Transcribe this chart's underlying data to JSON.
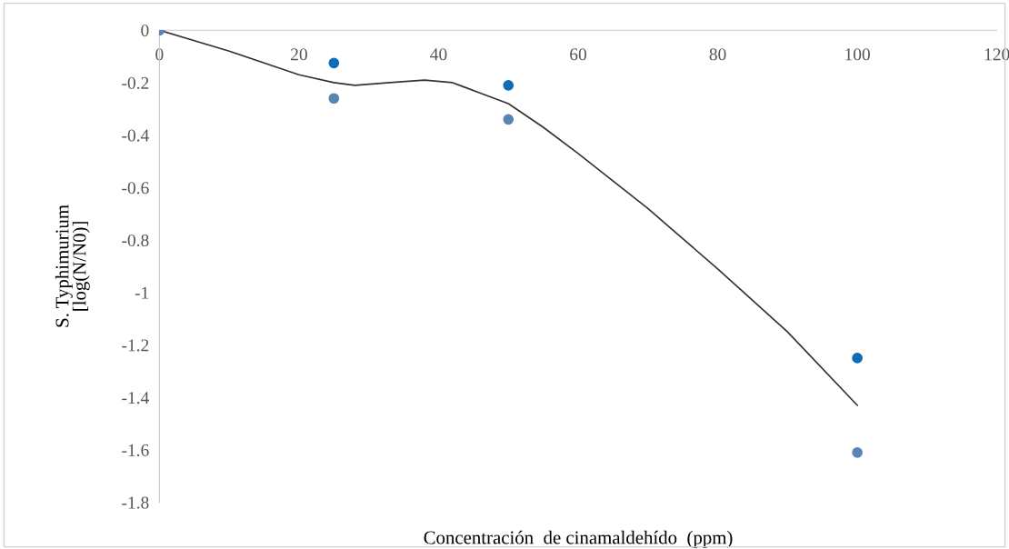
{
  "chart_data": {
    "type": "scatter",
    "xlabel": "Concentración  de cinamaldehído  (ppm)",
    "ylabel": "S. Typhimurium\n[log(N/N0)]",
    "series": [
      {
        "color": "#0f6cb6",
        "marker": "circle",
        "x": [
          0,
          25,
          50,
          100
        ],
        "values": [
          0,
          -0.125,
          -0.21,
          -1.25
        ]
      },
      {
        "color": "#5a84b6",
        "marker": "circle",
        "x": [
          0,
          25,
          50,
          100
        ],
        "values": [
          0,
          -0.26,
          -0.34,
          -1.61
        ]
      },
      {
        "type": "line",
        "color": "#333333",
        "x": [
          0,
          10,
          20,
          25,
          28,
          33,
          38,
          42,
          46,
          50,
          55,
          60,
          70,
          80,
          90,
          100
        ],
        "values": [
          0,
          -0.08,
          -0.17,
          -0.2,
          -0.21,
          -0.2,
          -0.19,
          -0.2,
          -0.24,
          -0.28,
          -0.37,
          -0.47,
          -0.68,
          -0.91,
          -1.15,
          -1.43
        ]
      }
    ],
    "xlim": [
      0,
      120
    ],
    "xticks": [
      0,
      20,
      40,
      60,
      80,
      100,
      120
    ],
    "ylim": [
      -1.8,
      0
    ],
    "yticks": [
      0,
      -0.2,
      -0.4,
      -0.6,
      -0.8,
      -1,
      -1.2,
      -1.4,
      -1.6,
      -1.8
    ],
    "grid": false,
    "legend": false
  }
}
